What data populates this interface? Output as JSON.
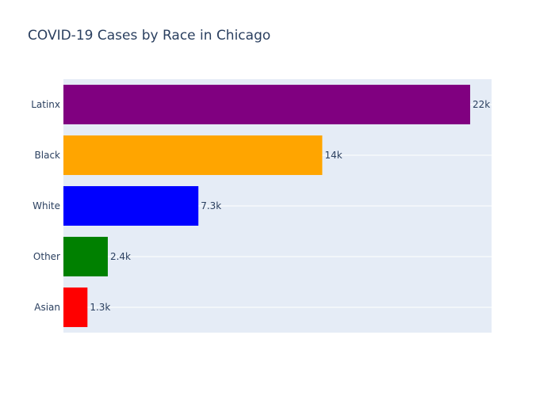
{
  "chart_data": {
    "type": "bar",
    "orientation": "horizontal",
    "title": "COVID-19 Cases by Race in Chicago",
    "xlabel": "",
    "ylabel": "",
    "categories": [
      "Latinx",
      "Black",
      "White",
      "Other",
      "Asian"
    ],
    "values": [
      22000,
      14000,
      7300,
      2400,
      1300
    ],
    "data_labels": [
      "22k",
      "14k",
      "7.3k",
      "2.4k",
      "1.3k"
    ],
    "bar_colors": [
      "#800080",
      "#FFA500",
      "#0000FF",
      "#008000",
      "#FF0000"
    ],
    "xlim": [
      0,
      23158
    ],
    "grid": true,
    "legend": "none",
    "plot_background": "#E5ECF6",
    "gridline_color": "#FFFFFF",
    "text_color": "#2a3f5f"
  }
}
